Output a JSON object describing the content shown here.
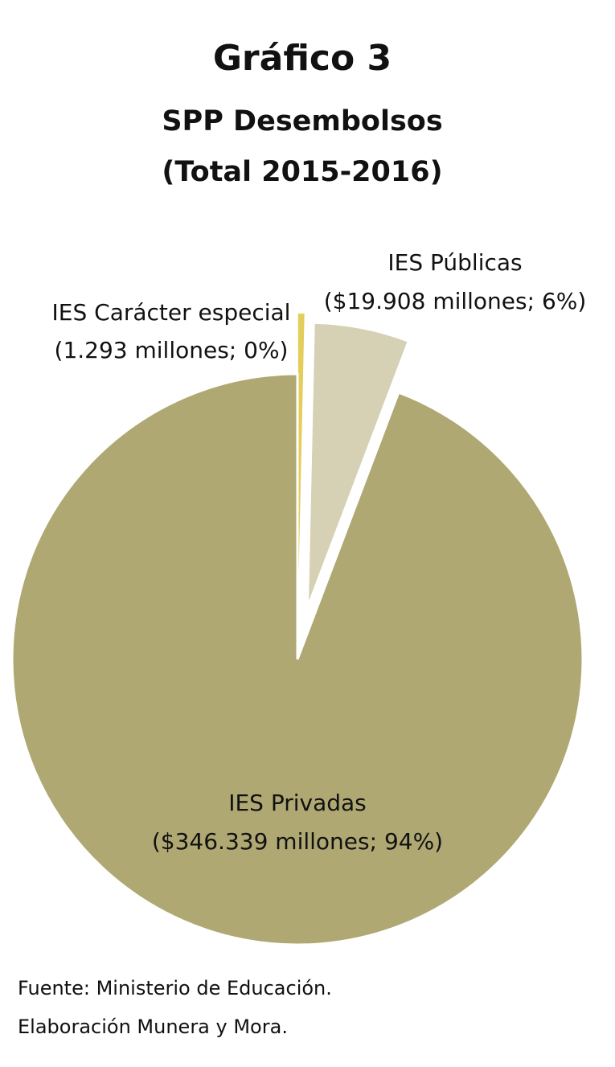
{
  "chart_data": {
    "type": "pie",
    "title": "Gráfico 3",
    "subtitle": [
      "SPP Desembolsos",
      "(Total 2015-2016)"
    ],
    "categories": [
      "IES Carácter especial",
      "IES Públicas",
      "IES Privadas"
    ],
    "values": [
      1293,
      19908,
      346339
    ],
    "value_labels": [
      "(1.293 millones; 0%)",
      "($19.908 millones; 6%)",
      "($346.339 millones; 94%)"
    ],
    "colors": [
      "#e3cd5b",
      "#d6d1b4",
      "#afa872"
    ],
    "notes": [
      "Fuente: Ministerio de Educación.",
      "Elaboración Munera y Mora."
    ]
  }
}
